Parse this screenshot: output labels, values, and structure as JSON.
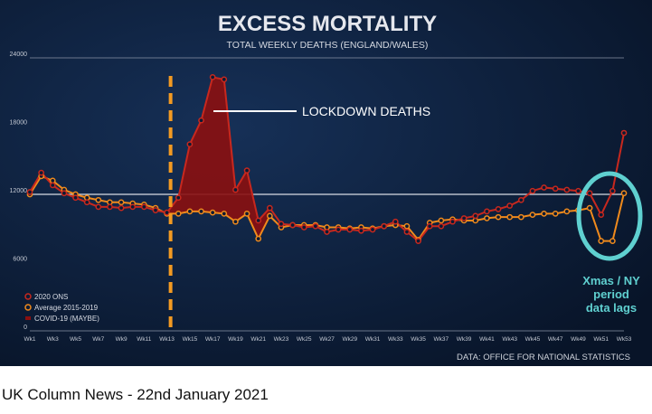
{
  "caption": "UK Column News - 22nd January 2021",
  "chart_data": {
    "type": "line",
    "title": "EXCESS MORTALITY",
    "subtitle": "TOTAL WEEKLY DEATHS (ENGLAND/WALES)",
    "source": "DATA: OFFICE FOR NATIONAL STATISTICS",
    "x_ticks": [
      "Wk1",
      "Wk3",
      "Wk5",
      "Wk7",
      "Wk9",
      "Wk11",
      "Wk13",
      "Wk15",
      "Wk17",
      "Wk19",
      "Wk21",
      "Wk23",
      "Wk25",
      "Wk27",
      "Wk29",
      "Wk31",
      "Wk33",
      "Wk35",
      "Wk37",
      "Wk39",
      "Wk41",
      "Wk43",
      "Wk45",
      "Wk47",
      "Wk49",
      "Wk51",
      "Wk53"
    ],
    "x_tick_weeks": [
      1,
      3,
      5,
      7,
      9,
      11,
      13,
      15,
      17,
      19,
      21,
      23,
      25,
      27,
      29,
      31,
      33,
      35,
      37,
      39,
      41,
      43,
      45,
      47,
      49,
      51,
      53
    ],
    "y_ticks": [
      0,
      6000,
      12000,
      18000,
      24000
    ],
    "ylim": [
      0,
      24000
    ],
    "xlim": [
      1,
      53
    ],
    "lockdown_week": 13,
    "annotation": "LOCKDOWN DEATHS",
    "side_note": [
      "Xmas / NY",
      "period",
      "data lags"
    ],
    "legend": [
      "2020 ONS",
      "Average 2015-2019",
      "COVID-19 (MAYBE)"
    ],
    "colors": {
      "ons": "#c8281e",
      "avg": "#f08a1c",
      "fill": "#8b1010",
      "note": "#5fd0d0",
      "ref": "#d8dce4"
    },
    "series": [
      {
        "name": "2020 ONS",
        "weeks": [
          1,
          2,
          3,
          4,
          5,
          6,
          7,
          8,
          9,
          10,
          11,
          12,
          13,
          14,
          15,
          16,
          17,
          18,
          19,
          20,
          21,
          22,
          23,
          24,
          25,
          26,
          27,
          28,
          29,
          30,
          31,
          32,
          33,
          34,
          35,
          36,
          37,
          38,
          39,
          40,
          41,
          42,
          43,
          44,
          45,
          46,
          47,
          48,
          49,
          50,
          51,
          52,
          53
        ],
        "values": [
          12200,
          13900,
          12800,
          12100,
          11700,
          11300,
          10900,
          10900,
          10800,
          10900,
          10900,
          10600,
          10400,
          11700,
          16400,
          18500,
          22300,
          22100,
          12400,
          14100,
          9700,
          10800,
          9400,
          9300,
          9100,
          9200,
          8700,
          8900,
          8900,
          8800,
          8900,
          9200,
          9600,
          8700,
          7900,
          9200,
          9200,
          9600,
          9900,
          10100,
          10500,
          10700,
          11000,
          11500,
          12300,
          12600,
          12500,
          12400,
          12300,
          12100,
          10200,
          12300,
          17400
        ]
      },
      {
        "name": "Average 2015-2019",
        "weeks": [
          1,
          2,
          3,
          4,
          5,
          6,
          7,
          8,
          9,
          10,
          11,
          12,
          13,
          14,
          15,
          16,
          17,
          18,
          19,
          20,
          21,
          22,
          23,
          24,
          25,
          26,
          27,
          28,
          29,
          30,
          31,
          32,
          33,
          34,
          35,
          36,
          37,
          38,
          39,
          40,
          41,
          42,
          43,
          44,
          45,
          46,
          47,
          48,
          49,
          50,
          51,
          52,
          53
        ],
        "values": [
          12000,
          13600,
          13200,
          12400,
          12000,
          11700,
          11500,
          11300,
          11300,
          11200,
          11100,
          10800,
          10300,
          10300,
          10500,
          10500,
          10400,
          10300,
          9600,
          10300,
          8100,
          10100,
          9100,
          9300,
          9300,
          9300,
          9100,
          9100,
          9000,
          9100,
          9000,
          9200,
          9300,
          9200,
          8000,
          9500,
          9700,
          9800,
          9700,
          9700,
          9900,
          10000,
          10000,
          10000,
          10200,
          10300,
          10300,
          10500,
          10600,
          10800,
          7900,
          7900,
          12100
        ]
      }
    ]
  }
}
